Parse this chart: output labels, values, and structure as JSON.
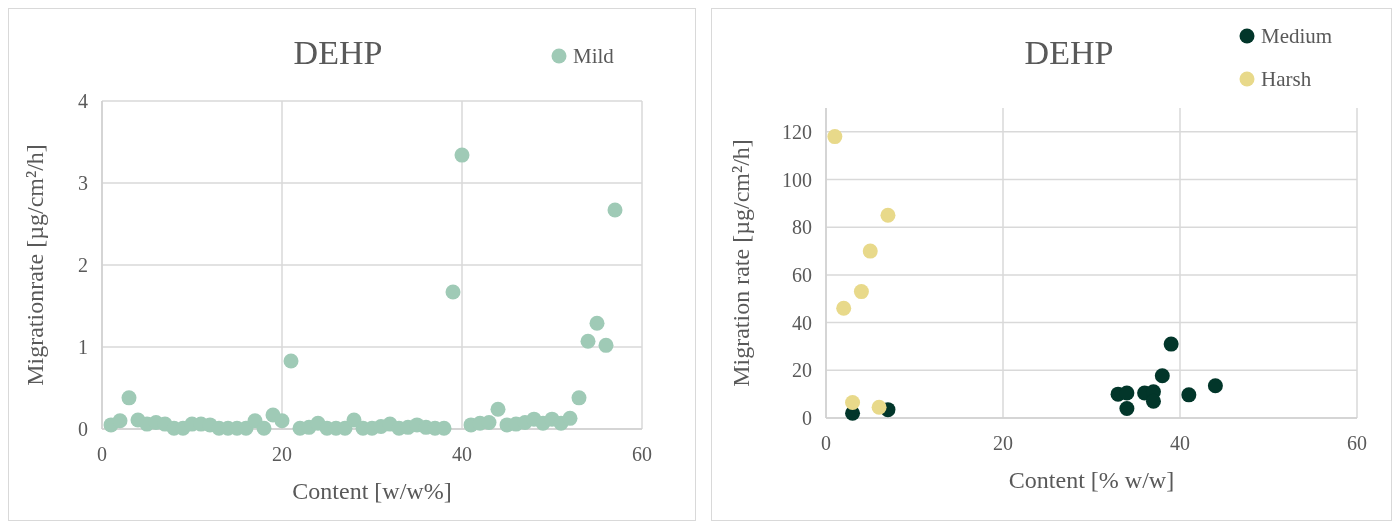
{
  "chart_data": [
    {
      "type": "scatter",
      "title": "DEHP",
      "xlabel": "Content [w/w%]",
      "ylabel": "Migrationrate [µg/cm²/h]",
      "xlim": [
        0,
        60
      ],
      "xticks": [
        0,
        20,
        40,
        60
      ],
      "ylim": [
        0,
        4
      ],
      "yticks": [
        0,
        1,
        2,
        3,
        4
      ],
      "grid": true,
      "legend": "top right",
      "marker": "circle",
      "series": [
        {
          "name": "Mild",
          "color": "#9fcab6",
          "x": [
            1,
            2,
            3,
            4,
            5,
            6,
            7,
            8,
            9,
            10,
            11,
            12,
            13,
            14,
            15,
            16,
            17,
            18,
            19,
            20,
            21,
            22,
            23,
            24,
            25,
            26,
            27,
            28,
            29,
            30,
            31,
            32,
            33,
            34,
            35,
            36,
            37,
            38,
            39,
            40,
            41,
            42,
            43,
            44,
            45,
            46,
            47,
            48,
            49,
            50,
            51,
            52,
            53,
            54,
            55,
            56,
            57
          ],
          "values": [
            0.05,
            0.1,
            0.38,
            0.11,
            0.06,
            0.08,
            0.06,
            0.01,
            0.01,
            0.06,
            0.06,
            0.05,
            0.01,
            0.01,
            0.01,
            0.01,
            0.1,
            0.01,
            0.17,
            0.1,
            0.83,
            0.01,
            0.02,
            0.07,
            0.01,
            0.01,
            0.01,
            0.11,
            0.01,
            0.01,
            0.03,
            0.06,
            0.01,
            0.02,
            0.05,
            0.02,
            0.01,
            0.01,
            1.67,
            3.34,
            0.05,
            0.07,
            0.08,
            0.24,
            0.05,
            0.06,
            0.08,
            0.12,
            0.07,
            0.12,
            0.07,
            0.13,
            0.38,
            1.07,
            1.29,
            1.02,
            2.67
          ]
        }
      ]
    },
    {
      "type": "scatter",
      "title": "DEHP",
      "xlabel": "Content [% w/w]",
      "ylabel": "Migration rate [µg/cm²/h]",
      "xlim": [
        0,
        60
      ],
      "xticks": [
        0,
        20,
        40,
        60
      ],
      "ylim": [
        0,
        130
      ],
      "yticks": [
        0,
        20,
        40,
        60,
        80,
        100,
        120
      ],
      "grid": true,
      "legend": "top right",
      "marker": "circle",
      "series": [
        {
          "name": "Medium",
          "color": "#02362a",
          "x": [
            3,
            7,
            33,
            34,
            34,
            36,
            37,
            37,
            38,
            39,
            41,
            44
          ],
          "values": [
            2,
            3.5,
            10,
            10.5,
            4,
            10.5,
            11,
            7,
            17.7,
            31,
            9.7,
            13.5
          ]
        },
        {
          "name": "Harsh",
          "color": "#e8d98a",
          "x": [
            1,
            2,
            3,
            4,
            5,
            6,
            7
          ],
          "values": [
            118,
            46,
            6.5,
            53,
            70,
            4.5,
            85
          ]
        }
      ]
    }
  ]
}
